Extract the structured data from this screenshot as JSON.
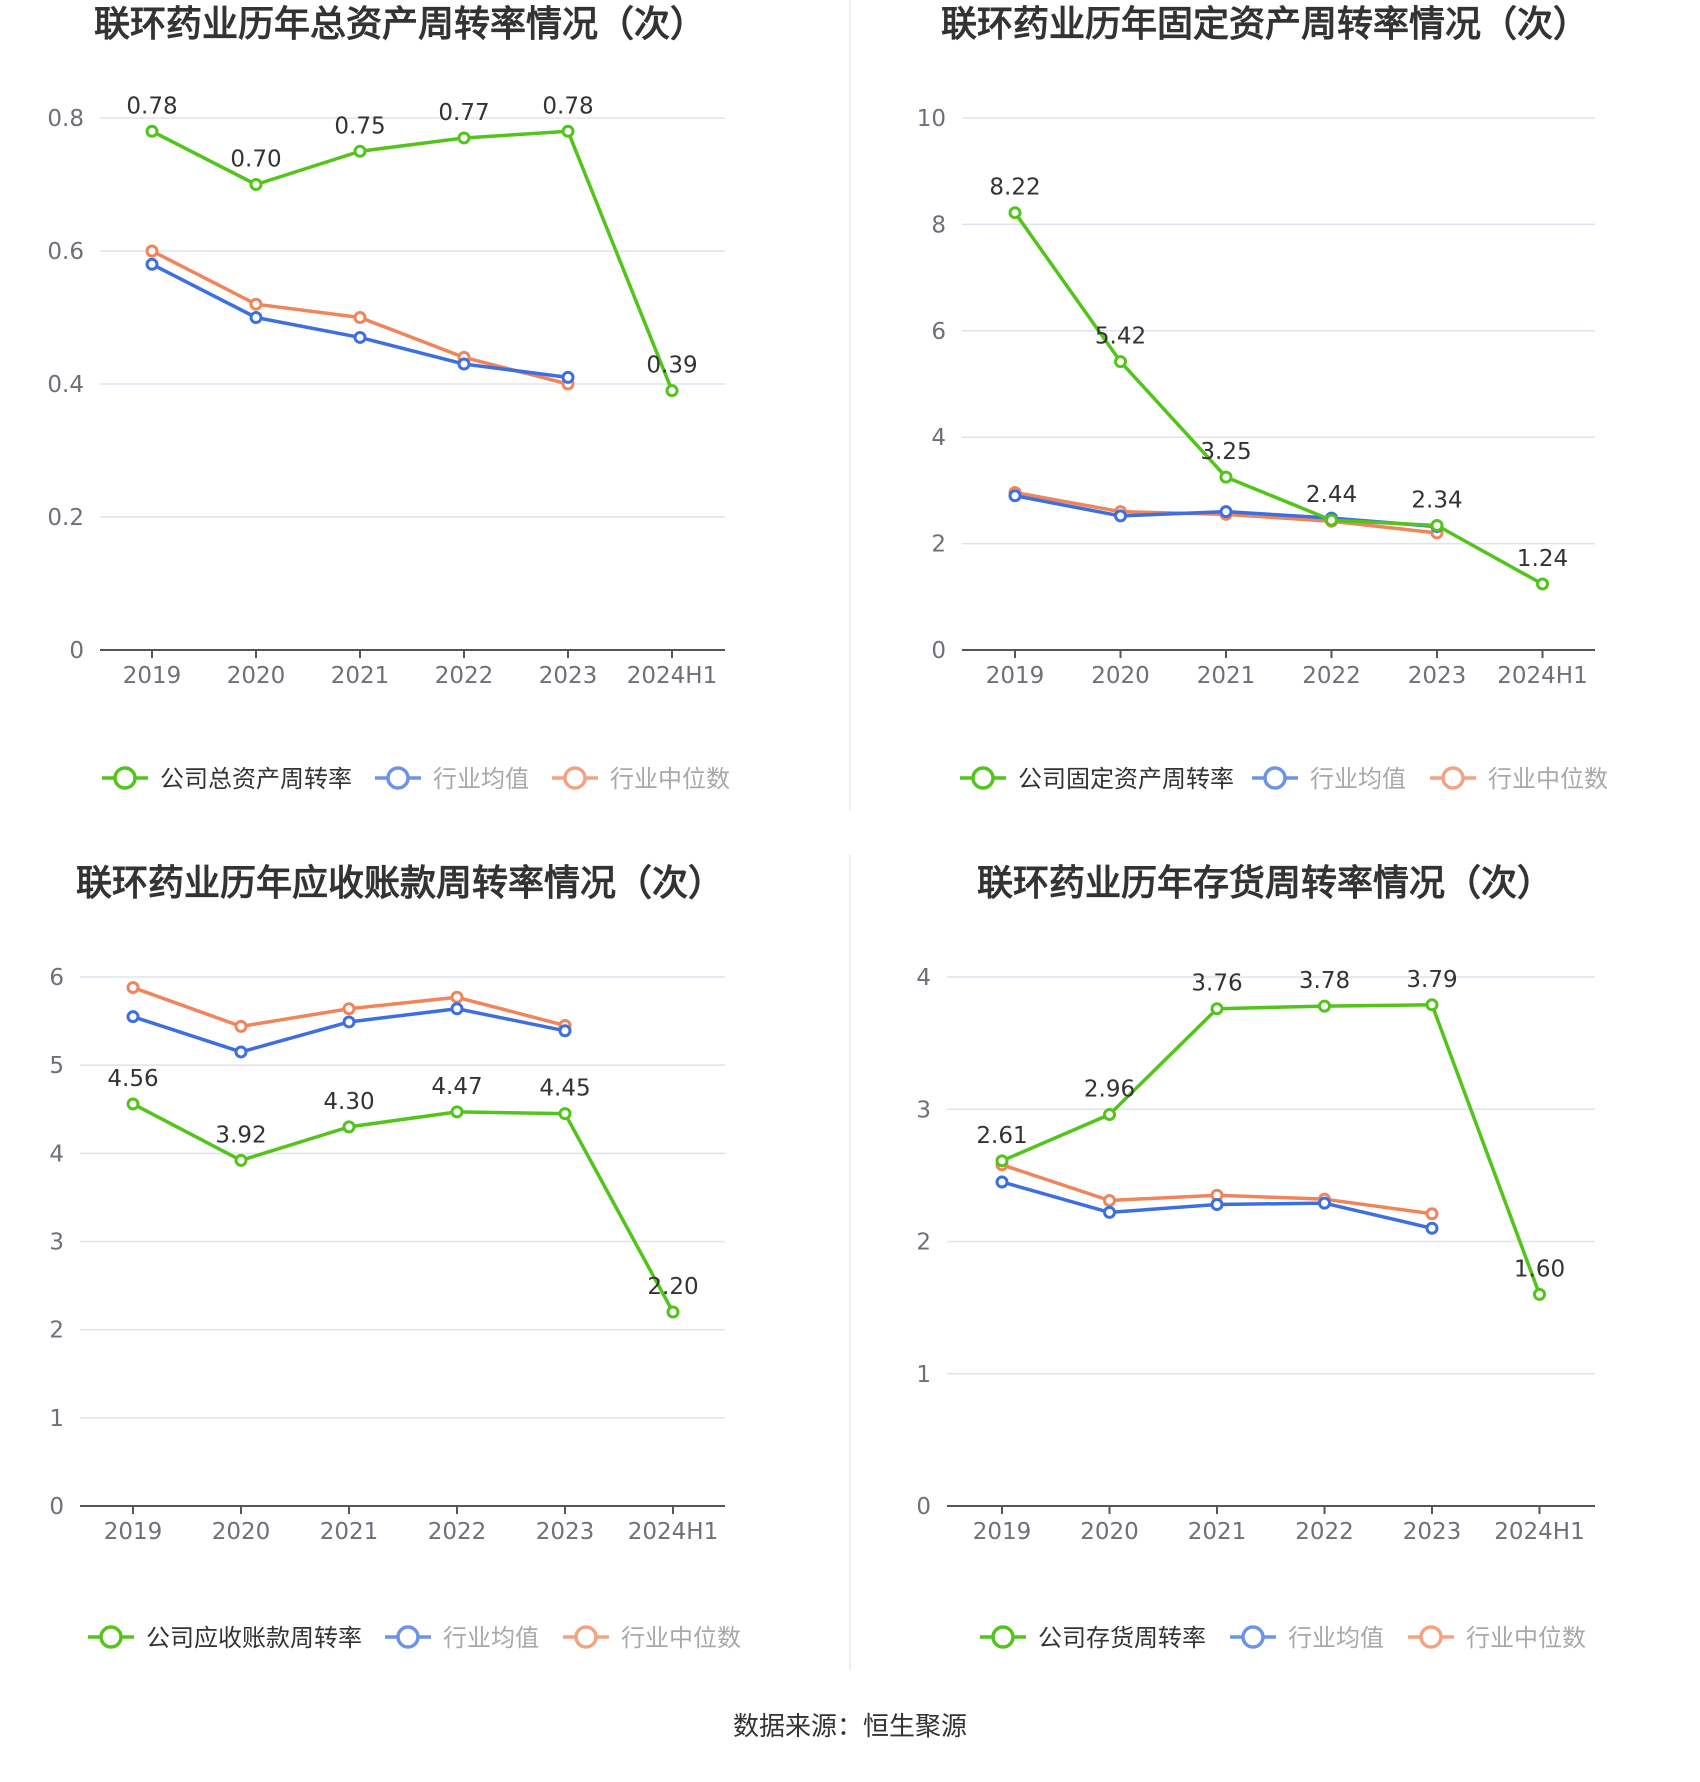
{
  "source": "数据来源：恒生聚源",
  "colors": {
    "company": "#52c41a",
    "avg": "#3d6fe0",
    "median": "#f0845a",
    "grid": "#dde3ee",
    "axis": "#555555"
  },
  "chart_data": [
    {
      "type": "line",
      "title": "联环药业历年总资产周转率情况（次）",
      "categories": [
        "2019",
        "2020",
        "2021",
        "2022",
        "2023",
        "2024H1"
      ],
      "yticks": [
        "0",
        "0.2",
        "0.4",
        "0.6",
        "0.8"
      ],
      "ylim": [
        0,
        0.8
      ],
      "series": [
        {
          "name": "公司总资产周转率",
          "values": [
            0.78,
            0.7,
            0.75,
            0.77,
            0.78,
            0.39
          ],
          "labels": [
            "0.78",
            "0.70",
            "0.75",
            "0.77",
            "0.78",
            "0.39"
          ]
        },
        {
          "name": "行业均值",
          "values": [
            0.58,
            0.5,
            0.47,
            0.43,
            0.41,
            null
          ]
        },
        {
          "name": "行业中位数",
          "values": [
            0.6,
            0.52,
            0.5,
            0.44,
            0.4,
            null
          ]
        }
      ]
    },
    {
      "type": "line",
      "title": "联环药业历年固定资产周转率情况（次）",
      "categories": [
        "2019",
        "2020",
        "2021",
        "2022",
        "2023",
        "2024H1"
      ],
      "yticks": [
        "0",
        "2",
        "4",
        "6",
        "8",
        "10"
      ],
      "ylim": [
        0,
        10
      ],
      "series": [
        {
          "name": "公司固定资产周转率",
          "values": [
            8.22,
            5.42,
            3.25,
            2.44,
            2.34,
            1.24
          ],
          "labels": [
            "8.22",
            "5.42",
            "3.25",
            "2.44",
            "2.34",
            "1.24"
          ]
        },
        {
          "name": "行业均值",
          "values": [
            2.9,
            2.52,
            2.6,
            2.48,
            2.32,
            null
          ]
        },
        {
          "name": "行业中位数",
          "values": [
            2.96,
            2.6,
            2.55,
            2.42,
            2.2,
            null
          ]
        }
      ]
    },
    {
      "type": "line",
      "title": "联环药业历年应收账款周转率情况（次）",
      "categories": [
        "2019",
        "2020",
        "2021",
        "2022",
        "2023",
        "2024H1"
      ],
      "yticks": [
        "0",
        "1",
        "2",
        "3",
        "4",
        "5",
        "6"
      ],
      "ylim": [
        0,
        6
      ],
      "series": [
        {
          "name": "公司应收账款周转率",
          "values": [
            4.56,
            3.92,
            4.3,
            4.47,
            4.45,
            2.2
          ],
          "labels": [
            "4.56",
            "3.92",
            "4.30",
            "4.47",
            "4.45",
            "2.20"
          ]
        },
        {
          "name": "行业均值",
          "values": [
            5.55,
            5.15,
            5.49,
            5.64,
            5.39,
            null
          ]
        },
        {
          "name": "行业中位数",
          "values": [
            5.88,
            5.44,
            5.64,
            5.77,
            5.45,
            null
          ]
        }
      ]
    },
    {
      "type": "line",
      "title": "联环药业历年存货周转率情况（次）",
      "categories": [
        "2019",
        "2020",
        "2021",
        "2022",
        "2023",
        "2024H1"
      ],
      "yticks": [
        "0",
        "1",
        "2",
        "3",
        "4"
      ],
      "ylim": [
        0,
        4
      ],
      "series": [
        {
          "name": "公司存货周转率",
          "values": [
            2.61,
            2.96,
            3.76,
            3.78,
            3.79,
            1.6
          ],
          "labels": [
            "2.61",
            "2.96",
            "3.76",
            "3.78",
            "3.79",
            "1.60"
          ]
        },
        {
          "name": "行业均值",
          "values": [
            2.45,
            2.22,
            2.28,
            2.29,
            2.1,
            null
          ]
        },
        {
          "name": "行业中位数",
          "values": [
            2.58,
            2.31,
            2.35,
            2.32,
            2.21,
            null
          ]
        }
      ]
    }
  ]
}
